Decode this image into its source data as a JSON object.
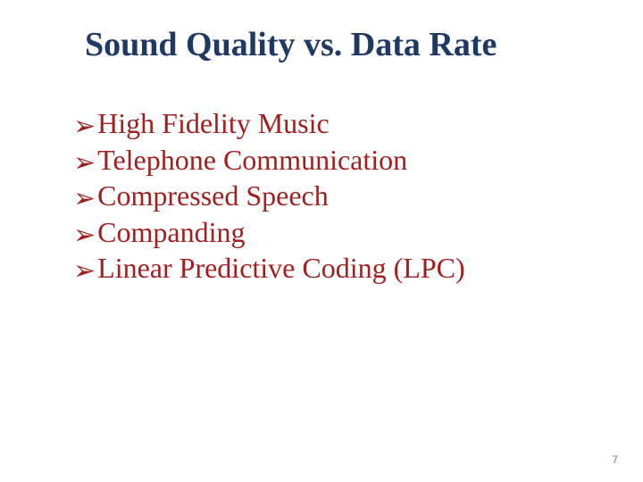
{
  "title": "Sound Quality vs. Data Rate",
  "title_color": "#1f3864",
  "title_fontsize": 38,
  "bullet_glyph": "➢",
  "bullet_color": "#a21f1f",
  "text_color": "#a21f1f",
  "text_fontsize": 32,
  "items": [
    "High Fidelity Music",
    "Telephone Communication",
    "Compressed Speech",
    "Companding",
    "Linear Predictive Coding (LPC)"
  ],
  "page_number": "7",
  "background_color": "#ffffff"
}
